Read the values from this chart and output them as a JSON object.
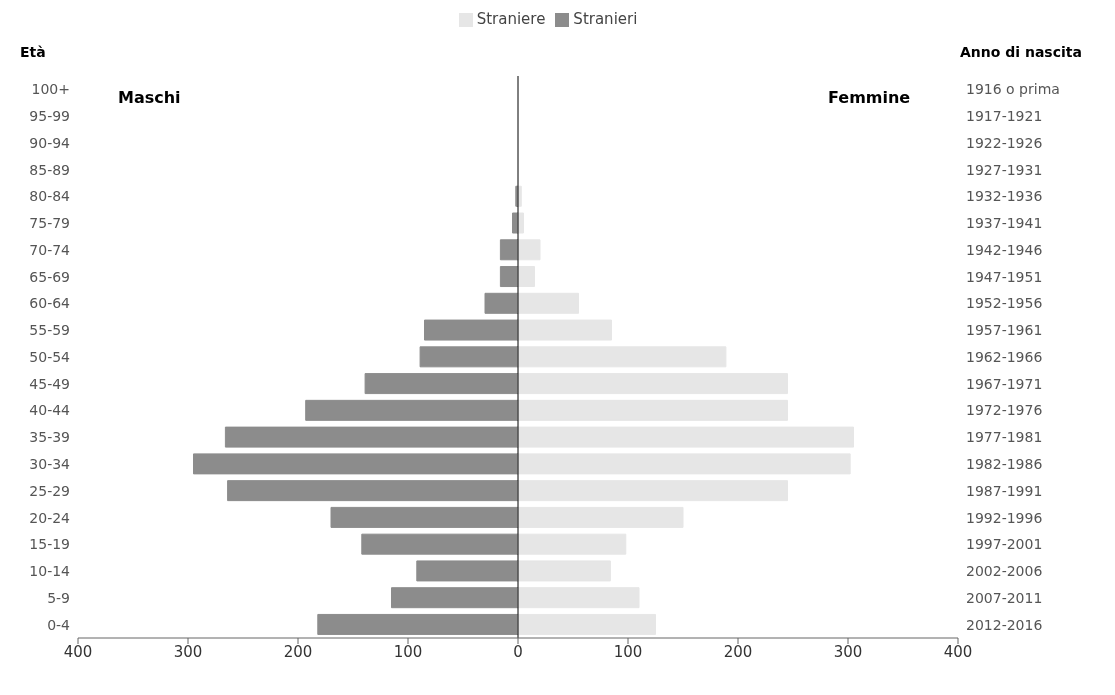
{
  "chart_data": {
    "type": "bar",
    "orientation": "horizontal",
    "ylabel": "Età",
    "y2label": "Anno di nascita",
    "annotations": [
      "Maschi",
      "Femmine"
    ],
    "categories": [
      "100+",
      "95-99",
      "90-94",
      "85-89",
      "80-84",
      "75-79",
      "70-74",
      "65-69",
      "60-64",
      "55-59",
      "50-54",
      "45-49",
      "40-44",
      "35-39",
      "30-34",
      "25-29",
      "20-24",
      "15-19",
      "10-14",
      "5-9",
      "0-4"
    ],
    "y2_categories": [
      "1916 o prima",
      "1917-1921",
      "1922-1926",
      "1927-1931",
      "1932-1936",
      "1937-1941",
      "1942-1946",
      "1947-1951",
      "1952-1956",
      "1957-1961",
      "1962-1966",
      "1967-1971",
      "1972-1976",
      "1977-1981",
      "1982-1986",
      "1987-1991",
      "1992-1996",
      "1997-2001",
      "2002-2006",
      "2007-2011",
      "2012-2016"
    ],
    "series": [
      {
        "name": "Stranieri",
        "color": "#8c8c8c",
        "values": [
          0,
          0,
          0,
          0,
          -2,
          -5,
          -16,
          -16,
          -30,
          -85,
          -89,
          -139,
          -193,
          -266,
          -295,
          -264,
          -170,
          -142,
          -92,
          -115,
          -182
        ]
      },
      {
        "name": "Straniere",
        "color": "#e6e6e6",
        "values": [
          0,
          0,
          0,
          0,
          3,
          5,
          20,
          15,
          55,
          85,
          189,
          245,
          245,
          305,
          302,
          245,
          150,
          98,
          84,
          110,
          125
        ]
      }
    ],
    "xlim": [
      -400,
      400
    ],
    "xticks": [
      {
        "value": -400,
        "label": "400"
      },
      {
        "value": -300,
        "label": "300"
      },
      {
        "value": -200,
        "label": "200"
      },
      {
        "value": -100,
        "label": "100"
      },
      0,
      100,
      200,
      300,
      400
    ],
    "stacked": true,
    "ref_lines": [
      {
        "axis": "x",
        "value": 0,
        "color": "#000000"
      }
    ],
    "legend": "top",
    "grid": false
  }
}
